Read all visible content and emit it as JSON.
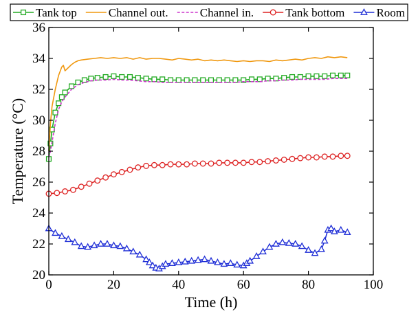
{
  "chart_data": {
    "type": "line",
    "xlabel": "Time (h)",
    "ylabel": "Temperature (°C)",
    "xlim": [
      0,
      100
    ],
    "ylim": [
      20,
      36
    ],
    "x_ticks": [
      0,
      20,
      40,
      60,
      80,
      100
    ],
    "y_ticks": [
      20,
      22,
      24,
      26,
      28,
      30,
      32,
      34,
      36
    ],
    "grid": false,
    "legend_position": "top",
    "series": [
      {
        "name": "Tank top",
        "color": "#22aa22",
        "marker": "square",
        "dash": "solid",
        "x": [
          0,
          0.5,
          1,
          2,
          3,
          4,
          5,
          7,
          9,
          11,
          13,
          15,
          17.5,
          20,
          22.5,
          25,
          27.5,
          30,
          32.5,
          35,
          37.5,
          40,
          42.5,
          45,
          47.5,
          50,
          52.5,
          55,
          57.5,
          60,
          62.5,
          65,
          67.5,
          70,
          72.5,
          75,
          77.5,
          80,
          82.5,
          85,
          87.5,
          90,
          92
        ],
        "y": [
          27.5,
          28.5,
          29.4,
          30.5,
          31.1,
          31.5,
          31.8,
          32.2,
          32.45,
          32.6,
          32.7,
          32.75,
          32.8,
          32.85,
          32.8,
          32.8,
          32.75,
          32.7,
          32.65,
          32.65,
          32.6,
          32.6,
          32.6,
          32.6,
          32.6,
          32.6,
          32.6,
          32.6,
          32.6,
          32.6,
          32.65,
          32.65,
          32.7,
          32.7,
          32.75,
          32.8,
          32.8,
          32.85,
          32.85,
          32.85,
          32.9,
          32.9,
          32.9
        ]
      },
      {
        "name": "Channel out.",
        "color": "#f0980f",
        "marker": "none",
        "dash": "solid",
        "x": [
          0,
          0.5,
          1,
          2,
          3,
          4,
          4.5,
          5,
          6,
          7,
          8,
          9,
          10,
          12,
          14,
          16,
          18,
          20,
          22,
          24,
          26,
          28,
          30,
          32,
          34,
          36,
          38,
          40,
          42,
          44,
          46,
          48,
          50,
          52,
          54,
          56,
          58,
          60,
          62,
          64,
          66,
          68,
          70,
          72,
          74,
          76,
          78,
          80,
          82,
          84,
          86,
          88,
          90,
          92
        ],
        "y": [
          28.0,
          29.8,
          30.9,
          32.0,
          32.9,
          33.45,
          33.55,
          33.2,
          33.4,
          33.6,
          33.75,
          33.85,
          33.9,
          33.95,
          34.0,
          34.05,
          34.0,
          34.05,
          34.0,
          34.05,
          33.95,
          34.05,
          33.95,
          34.0,
          34.0,
          33.95,
          33.9,
          34.0,
          33.95,
          33.9,
          33.95,
          33.85,
          33.9,
          33.85,
          33.9,
          33.85,
          33.8,
          33.85,
          33.8,
          33.85,
          33.85,
          33.8,
          33.9,
          33.85,
          33.9,
          33.95,
          33.9,
          34.0,
          34.05,
          34.0,
          34.1,
          34.05,
          34.1,
          34.05
        ]
      },
      {
        "name": "Channel in.",
        "color": "#cc33cc",
        "marker": "none",
        "dash": "dashed",
        "x": [
          0,
          0.5,
          1,
          2,
          3,
          4,
          5,
          7,
          9,
          11,
          13,
          15,
          17.5,
          20,
          22.5,
          25,
          27.5,
          30,
          32.5,
          35,
          37.5,
          40,
          42.5,
          45,
          47.5,
          50,
          52.5,
          55,
          57.5,
          60,
          62.5,
          65,
          67.5,
          70,
          72.5,
          75,
          77.5,
          80,
          82.5,
          85,
          87.5,
          90,
          92
        ],
        "y": [
          27.6,
          28.0,
          28.6,
          29.8,
          30.7,
          31.2,
          31.5,
          32.0,
          32.3,
          32.45,
          32.55,
          32.6,
          32.6,
          32.65,
          32.6,
          32.6,
          32.55,
          32.5,
          32.5,
          32.45,
          32.45,
          32.45,
          32.45,
          32.45,
          32.45,
          32.45,
          32.45,
          32.45,
          32.45,
          32.5,
          32.5,
          32.5,
          32.55,
          32.55,
          32.6,
          32.6,
          32.65,
          32.65,
          32.65,
          32.65,
          32.7,
          32.7,
          32.7
        ]
      },
      {
        "name": "Tank bottom",
        "color": "#dd2222",
        "marker": "circle",
        "dash": "solid",
        "x": [
          0,
          2.5,
          5,
          7.5,
          10,
          12.5,
          15,
          17.5,
          20,
          22.5,
          25,
          27.5,
          30,
          32.5,
          35,
          37.5,
          40,
          42.5,
          45,
          47.5,
          50,
          52.5,
          55,
          57.5,
          60,
          62.5,
          65,
          67.5,
          70,
          72.5,
          75,
          77.5,
          80,
          82.5,
          85,
          87.5,
          90,
          92
        ],
        "y": [
          25.25,
          25.3,
          25.4,
          25.5,
          25.7,
          25.9,
          26.1,
          26.3,
          26.5,
          26.65,
          26.8,
          26.95,
          27.05,
          27.1,
          27.1,
          27.15,
          27.15,
          27.15,
          27.2,
          27.2,
          27.2,
          27.25,
          27.25,
          27.25,
          27.25,
          27.3,
          27.3,
          27.35,
          27.4,
          27.45,
          27.5,
          27.55,
          27.6,
          27.6,
          27.65,
          27.65,
          27.7,
          27.7
        ]
      },
      {
        "name": "Room",
        "color": "#1f2ed6",
        "marker": "triangle",
        "dash": "solid",
        "x": [
          0,
          2,
          4,
          6,
          8,
          10,
          12,
          14,
          16,
          18,
          20,
          22,
          24,
          26,
          28,
          30,
          31,
          32,
          33,
          34,
          35,
          36,
          38,
          40,
          42,
          44,
          46,
          48,
          50,
          52,
          54,
          56,
          58,
          60,
          61,
          62,
          64,
          66,
          68,
          70,
          72,
          74,
          76,
          78,
          80,
          82,
          84,
          85,
          86,
          87,
          88,
          90,
          92
        ],
        "y": [
          23.0,
          22.7,
          22.5,
          22.3,
          22.1,
          21.85,
          21.8,
          21.9,
          22.0,
          22.0,
          21.9,
          21.85,
          21.7,
          21.5,
          21.3,
          21.0,
          20.8,
          20.6,
          20.45,
          20.4,
          20.55,
          20.7,
          20.75,
          20.8,
          20.85,
          20.9,
          20.95,
          21.0,
          20.9,
          20.8,
          20.7,
          20.75,
          20.65,
          20.6,
          20.75,
          20.9,
          21.2,
          21.5,
          21.8,
          22.0,
          22.1,
          22.05,
          22.0,
          21.85,
          21.6,
          21.4,
          21.65,
          22.2,
          22.9,
          23.0,
          22.8,
          22.9,
          22.75
        ]
      }
    ]
  }
}
